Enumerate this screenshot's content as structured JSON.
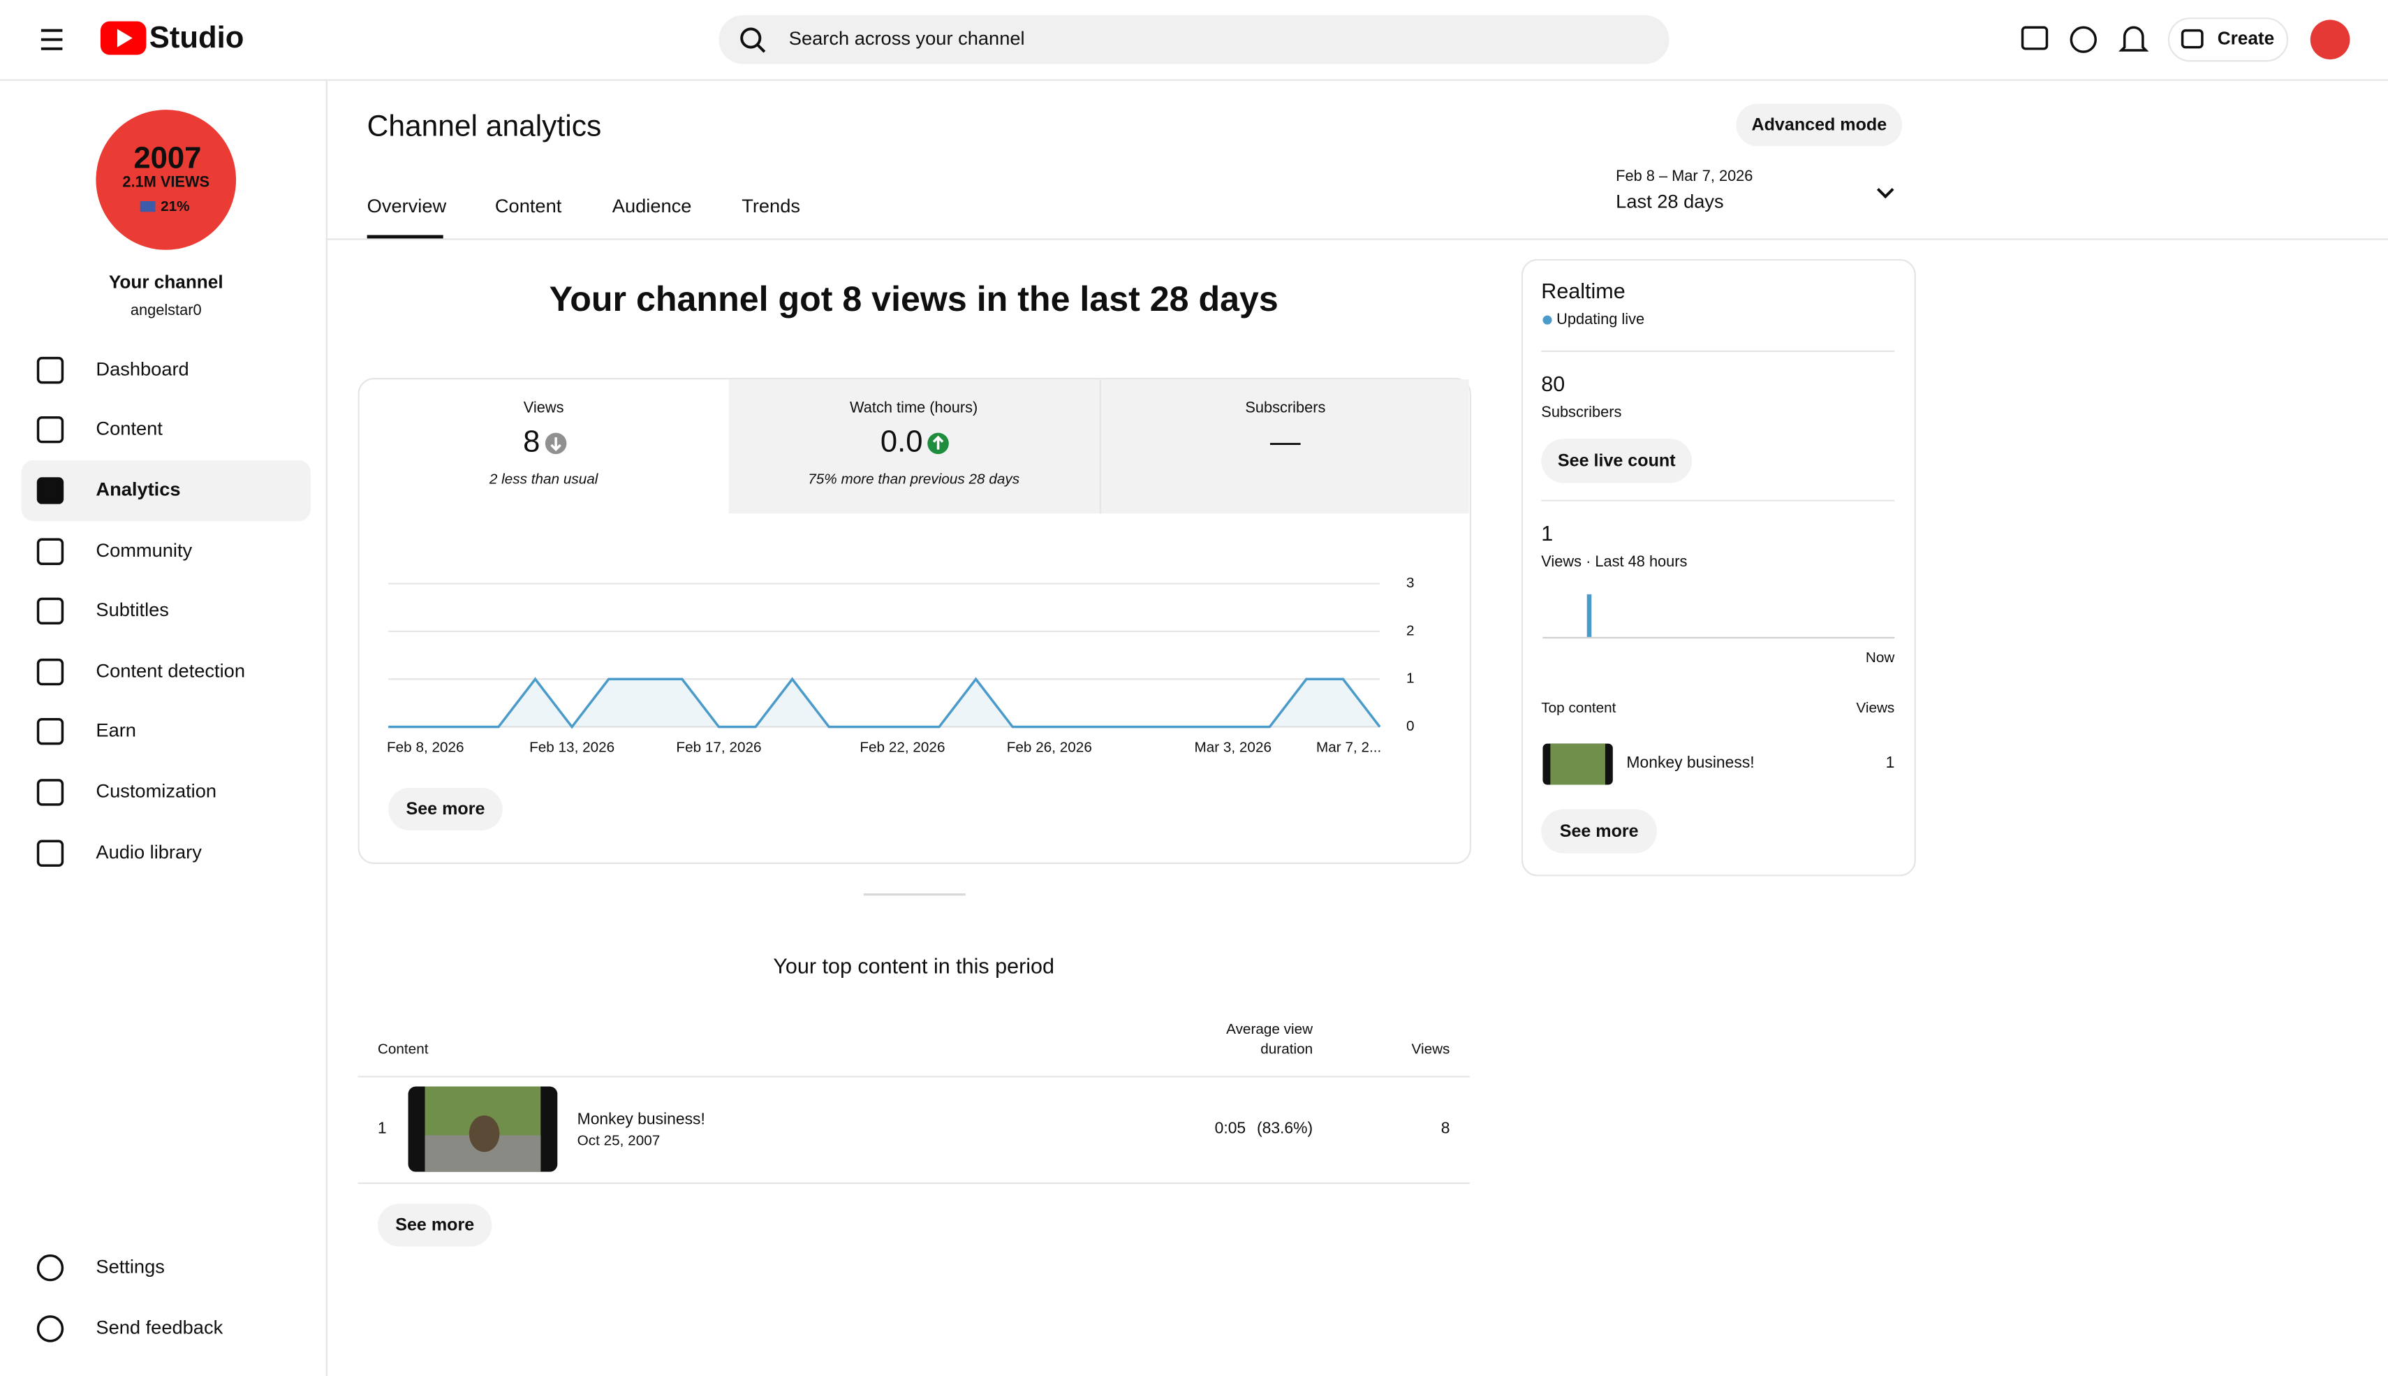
{
  "header": {
    "logo": "Studio",
    "search_placeholder": "Search across your channel",
    "create": "Create"
  },
  "sidebar": {
    "avatar_lines": [
      "2007",
      "2.1M VIEWS",
      "21%"
    ],
    "channel_label": "Your channel",
    "handle": "angelstar0",
    "nav": [
      "Dashboard",
      "Content",
      "Analytics",
      "Community",
      "Subtitles",
      "Content detection",
      "Earn",
      "Customization",
      "Audio library"
    ],
    "bottom": [
      "Settings",
      "Send feedback"
    ]
  },
  "page": {
    "title": "Channel analytics",
    "advanced_mode": "Advanced mode",
    "tabs": [
      "Overview",
      "Content",
      "Audience",
      "Trends"
    ],
    "date_range": "Feb 8 – Mar 7, 2026",
    "period": "Last 28 days"
  },
  "summary": {
    "headline": "Your channel got 8 views in the last 28 days",
    "metrics": [
      {
        "label": "Views",
        "value": "8",
        "note": "2 less than usual"
      },
      {
        "label": "Watch time (hours)",
        "value": "0.0",
        "note": "75% more than previous 28 days"
      },
      {
        "label": "Subscribers",
        "value": "—"
      }
    ],
    "see_more": "See more"
  },
  "views_chart": {
    "type": "line",
    "color": "#4a9bc9",
    "categories": [
      "Feb 8, 2026",
      null,
      null,
      null,
      null,
      "Feb 13, 2026",
      null,
      null,
      null,
      "Feb 17, 2026",
      null,
      null,
      null,
      null,
      "Feb 22, 2026",
      null,
      null,
      null,
      "Feb 26, 2026",
      null,
      null,
      null,
      null,
      "Mar 3, 2026",
      null,
      null,
      null,
      "Mar 7, 2..."
    ],
    "values": [
      0,
      0,
      0,
      0,
      1,
      0,
      1,
      1,
      1,
      0,
      0,
      1,
      0,
      0,
      0,
      0,
      1,
      0,
      0,
      0,
      0,
      0,
      0,
      0,
      0,
      1,
      1,
      0
    ],
    "ylim": [
      0,
      3
    ],
    "yticks": [
      0,
      1,
      2,
      3
    ],
    "grid": true
  },
  "top_content": {
    "title": "Your top content in this period",
    "columns": [
      "Content",
      [
        "Average view",
        "duration"
      ],
      "Views"
    ],
    "rows": [
      {
        "rank": "1",
        "title": "Monkey business!",
        "date": "Oct 25, 2007",
        "duration": "0:05",
        "percent": "(83.6%)",
        "views": "8"
      }
    ],
    "see_more": "See more"
  },
  "realtime": {
    "title": "Realtime",
    "status": "Updating live",
    "subscribers": "80",
    "subscribers_label": "Subscribers",
    "see_live_count": "See live count",
    "views": "1",
    "views_label": "Views · Last 48 hours",
    "now": "Now",
    "top_content_label": "Top content",
    "views_column": "Views",
    "top_item": {
      "title": "Monkey business!",
      "views": "1"
    },
    "see_more": "See more"
  }
}
